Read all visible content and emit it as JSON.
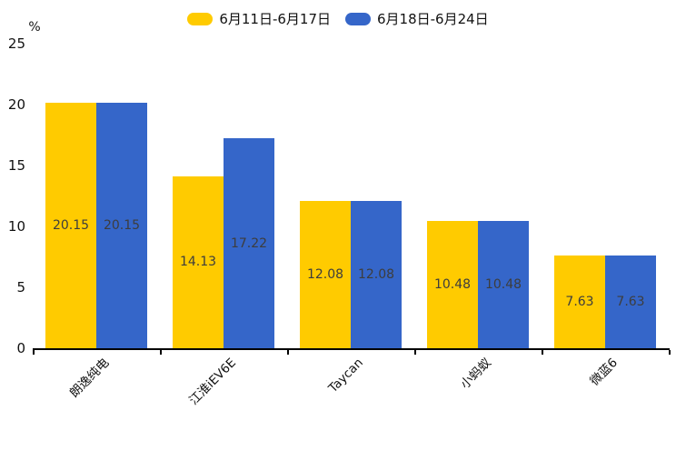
{
  "chart_data": {
    "type": "bar",
    "title": "",
    "ylabel": "%",
    "categories": [
      "朗逸纯电",
      "江淮iEV6E",
      "Taycan",
      "小蚂蚁",
      "微蓝6"
    ],
    "series": [
      {
        "name": "6月11日-6月17日",
        "color": "#FFCB00",
        "values": [
          20.15,
          14.13,
          12.08,
          10.48,
          7.63
        ]
      },
      {
        "name": "6月18日-6月24日",
        "color": "#3566C9",
        "values": [
          20.15,
          17.22,
          12.08,
          10.48,
          7.63
        ]
      }
    ],
    "ylim": [
      0,
      25
    ],
    "yticks": [
      0,
      5,
      10,
      15,
      20,
      25
    ],
    "legend_position": "top-center",
    "grid": false,
    "value_label_position": "inside-center",
    "value_label_color": "#3d3d3d",
    "axis_color": "#000000",
    "category_label_rotation_deg": 45
  }
}
